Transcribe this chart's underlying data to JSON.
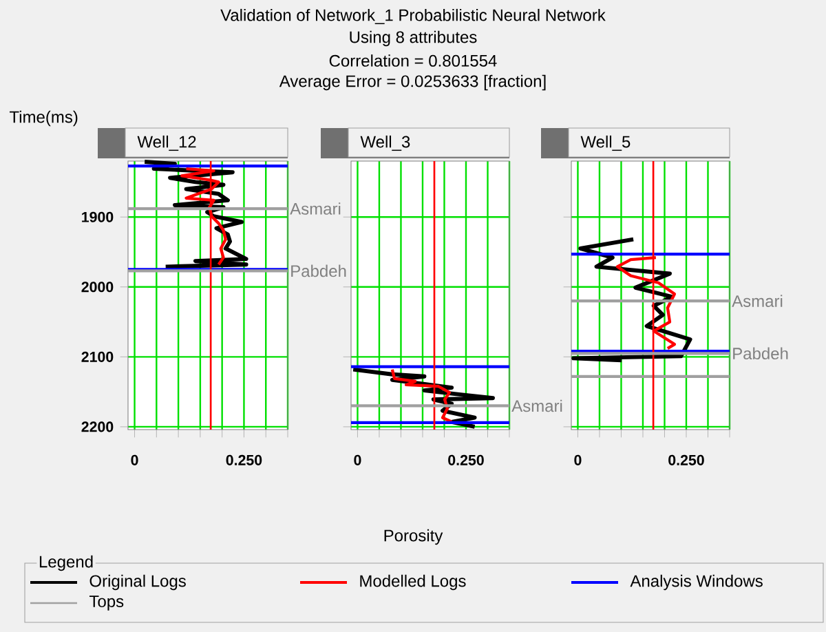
{
  "chart_data": [
    {
      "type": "line",
      "title": "Well_12",
      "annotations": [
        "Validation of Network_1 Probabilistic Neural Network",
        "Using 8 attributes",
        "Correlation = 0.801554",
        "Average Error = 0.0253633 [fraction]"
      ],
      "ylabel": "Time(ms)",
      "legend_title": "Legend",
      "legend": "bottom",
      "grid": true,
      "xlim": [
        -0.015,
        0.35
      ],
      "ylim": [
        2204,
        1820
      ],
      "xticks": [
        0,
        {
          "value": 0.05,
          "label": null
        },
        {
          "value": 0.1,
          "label": null
        },
        {
          "value": 0.15,
          "label": null
        },
        {
          "value": 0.2,
          "label": null
        },
        {
          "value": 0.25,
          "label": "0.250"
        },
        {
          "value": 0.3,
          "label": null
        },
        {
          "value": 0.35,
          "label": null
        }
      ],
      "yticks": [
        1900,
        2000,
        2100,
        2200
      ],
      "ref_lines": [
        {
          "axis": "x",
          "value": 0.174,
          "color": "#ff0000"
        },
        {
          "axis": "y",
          "value": 1888,
          "label": "Asmari",
          "color": "#a0a0a0"
        },
        {
          "axis": "y",
          "value": 1977,
          "label": "Pabdeh",
          "color": "#a0a0a0"
        }
      ],
      "series": [
        {
          "name": "Original Logs",
          "color": "#000000",
          "x": [
            0.023,
            0.092,
            0.044,
            0.15,
            0.224,
            0.081,
            0.139,
            0.203,
            0.118,
            0.192,
            0.213,
            0.092,
            0.203,
            0.166,
            0.181,
            0.245,
            0.187,
            0.213,
            0.218,
            0.208,
            0.255,
            0.139,
            0.255,
            0.071
          ],
          "values": [
            1821,
            1824,
            1831,
            1834,
            1836,
            1844,
            1850,
            1854,
            1860,
            1867,
            1876,
            1883,
            1886,
            1893,
            1899,
            1907,
            1916,
            1925,
            1935,
            1945,
            1960,
            1963,
            1968,
            1971
          ]
        },
        {
          "name": "Modelled Logs",
          "color": "#ff0000",
          "x": [
            0.118,
            0.181,
            0.108,
            0.171,
            0.192,
            0.176,
            0.118,
            0.181,
            0.171,
            0.176,
            0.192,
            0.203,
            0.208,
            0.197,
            0.203,
            0.192
          ],
          "values": [
            1831,
            1834,
            1841,
            1847,
            1850,
            1860,
            1873,
            1876,
            1886,
            1899,
            1909,
            1919,
            1932,
            1945,
            1958,
            1968
          ]
        },
        {
          "name": "Analysis Windows",
          "color": "#0000ff",
          "x": [
            -0.015,
            0.35
          ],
          "values": [
            1975,
            1975
          ]
        },
        {
          "color": "#0000ff",
          "x": [
            -0.015,
            0.35
          ],
          "values": [
            1827,
            1827
          ]
        }
      ]
    },
    {
      "type": "line",
      "title": "Well_3",
      "xlabel": "Porosity",
      "grid": true,
      "tick_labels": "x",
      "xlim": [
        -0.015,
        0.35
      ],
      "ylim": [
        2204,
        1820
      ],
      "xticks": [
        0,
        {
          "value": 0.05,
          "label": null
        },
        {
          "value": 0.1,
          "label": null
        },
        {
          "value": 0.15,
          "label": null
        },
        {
          "value": 0.2,
          "label": null
        },
        {
          "value": 0.25,
          "label": "0.250"
        },
        {
          "value": 0.3,
          "label": null
        },
        {
          "value": 0.35,
          "label": null
        }
      ],
      "yticks": [
        1900,
        2000,
        2100,
        2200
      ],
      "ref_lines": [
        {
          "axis": "x",
          "value": 0.177,
          "color": "#ff0000"
        },
        {
          "axis": "y",
          "value": 2170,
          "label": "Asmari",
          "color": "#a0a0a0"
        }
      ],
      "series": [
        {
          "color": "#000000",
          "x": [
            -0.01,
            0.08,
            0.154,
            0.08,
            0.143,
            0.217,
            0.154,
            0.238,
            0.312,
            0.175,
            0.217,
            0.196,
            0.27,
            0.217,
            0.27
          ],
          "values": [
            2118,
            2125,
            2128,
            2133,
            2138,
            2144,
            2148,
            2154,
            2159,
            2161,
            2167,
            2177,
            2187,
            2193,
            2200
          ]
        },
        {
          "color": "#ff0000",
          "x": [
            0.08,
            0.085,
            0.133,
            0.112,
            0.186,
            0.212,
            0.201,
            0.207,
            0.196,
            0.217
          ],
          "values": [
            2118,
            2131,
            2135,
            2140,
            2142,
            2151,
            2161,
            2174,
            2187,
            2193
          ]
        },
        {
          "color": "#0000ff",
          "x": [
            -0.015,
            0.35
          ],
          "values": [
            2114,
            2114
          ]
        },
        {
          "color": "#0000ff",
          "x": [
            -0.015,
            0.35
          ],
          "values": [
            2194,
            2194
          ]
        }
      ]
    },
    {
      "type": "line",
      "title": "Well_5",
      "grid": true,
      "tick_labels": "x",
      "xlim": [
        -0.015,
        0.35
      ],
      "ylim": [
        2204,
        1820
      ],
      "xticks": [
        0,
        {
          "value": 0.05,
          "label": null
        },
        {
          "value": 0.1,
          "label": null
        },
        {
          "value": 0.15,
          "label": null
        },
        {
          "value": 0.2,
          "label": null
        },
        {
          "value": 0.25,
          "label": "0.250"
        },
        {
          "value": 0.3,
          "label": null
        },
        {
          "value": 0.35,
          "label": null
        }
      ],
      "yticks": [
        1900,
        2000,
        2100,
        2200
      ],
      "ref_lines": [
        {
          "axis": "x",
          "value": 0.174,
          "color": "#ff0000"
        },
        {
          "axis": "y",
          "value": 2020,
          "label": "Asmari",
          "color": "#a0a0a0"
        },
        {
          "axis": "y",
          "value": 2095,
          "label": "Pabdeh",
          "color": "#a0a0a0"
        }
      ],
      "series": [
        {
          "color": "#000000",
          "x": [
            0.128,
            0.006,
            0.08,
            0.043,
            0.212,
            0.133,
            0.217,
            0.175,
            0.196,
            0.159,
            0.259,
            0.238,
            -0.01,
            0.101
          ],
          "values": [
            1932,
            1945,
            1958,
            1971,
            1981,
            2001,
            2014,
            2027,
            2040,
            2056,
            2075,
            2099,
            2102,
            2105
          ]
        },
        {
          "color": "#ff0000",
          "x": [
            0.18,
            0.122,
            0.091,
            0.122,
            0.186,
            0.223,
            0.207,
            0.212,
            0.175,
            0.223,
            0.207
          ],
          "values": [
            1958,
            1961,
            1971,
            1984,
            1994,
            2010,
            2030,
            2050,
            2063,
            2082,
            2088
          ]
        },
        {
          "name": "Tops",
          "color": "#a0a0a0",
          "x": [
            -0.015,
            0.35
          ],
          "values": [
            2128,
            2128
          ]
        },
        {
          "color": "#0000ff",
          "x": [
            -0.015,
            0.35
          ],
          "values": [
            1953,
            1953
          ]
        },
        {
          "color": "#0000ff",
          "x": [
            -0.015,
            0.35
          ],
          "values": [
            2092,
            2092
          ]
        }
      ]
    }
  ]
}
